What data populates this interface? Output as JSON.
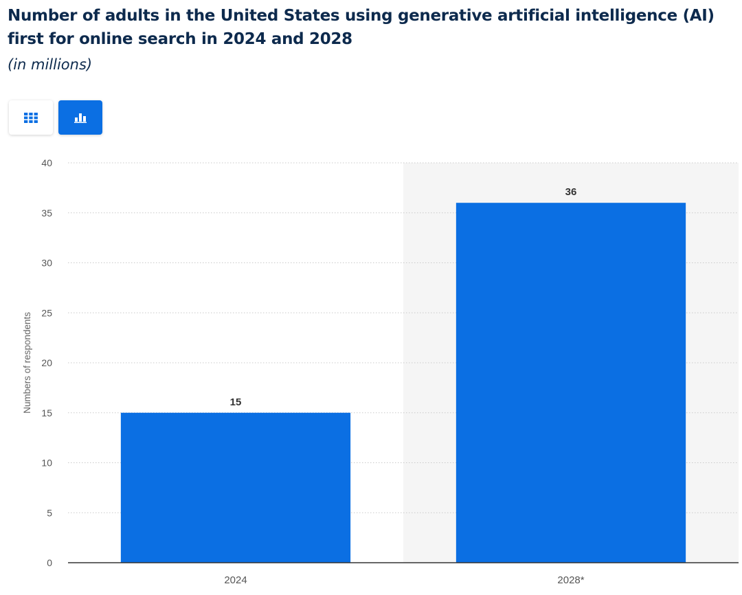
{
  "header": {
    "title": "Number of adults in the United States using generative artificial intelligence (AI) first for online search in 2024 and 2028",
    "subtitle": "(in millions)"
  },
  "view_toggle": {
    "table_icon": "table-grid-icon",
    "bar_icon": "bar-chart-icon",
    "active": "bar"
  },
  "colors": {
    "bar": "#0b6fe3",
    "highlight_band": "#f5f5f5",
    "grid": "#c9c9c9",
    "axis_text": "#555555",
    "title": "#0d2a4d"
  },
  "chart_data": {
    "type": "bar",
    "categories": [
      "2024",
      "2028*"
    ],
    "values": [
      15,
      36
    ],
    "data_labels": [
      "15",
      "36"
    ],
    "title": "Number of adults in the United States using generative artificial intelligence (AI) first for online search in 2024 and 2028",
    "subtitle": "(in millions)",
    "xlabel": "",
    "ylabel": "Numbers of respondents",
    "ylim": [
      0,
      40
    ],
    "yticks": [
      0,
      5,
      10,
      15,
      20,
      25,
      30,
      35,
      40
    ],
    "grid": true,
    "highlighted_category": "2028*"
  }
}
